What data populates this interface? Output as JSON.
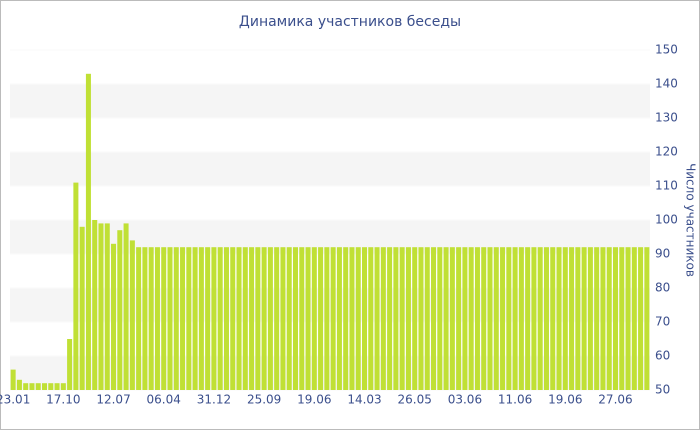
{
  "chart_data": {
    "type": "bar",
    "title": "Динамика участников беседы",
    "y_label": "Число участников",
    "categories": [
      "23.01",
      null,
      null,
      null,
      null,
      null,
      null,
      null,
      "17.10",
      null,
      null,
      null,
      null,
      null,
      null,
      null,
      "12.07",
      null,
      null,
      null,
      null,
      null,
      null,
      null,
      "06.04",
      null,
      null,
      null,
      null,
      null,
      null,
      null,
      "31.12",
      null,
      null,
      null,
      null,
      null,
      null,
      null,
      "25.09",
      null,
      null,
      null,
      null,
      null,
      null,
      null,
      "19.06",
      null,
      null,
      null,
      null,
      null,
      null,
      null,
      "14.03",
      null,
      null,
      null,
      null,
      null,
      null,
      null,
      "26.05",
      null,
      null,
      null,
      null,
      null,
      null,
      null,
      "03.06",
      null,
      null,
      null,
      null,
      null,
      null,
      null,
      "11.06",
      null,
      null,
      null,
      null,
      null,
      null,
      null,
      "19.06",
      null,
      null,
      null,
      null,
      null,
      null,
      null,
      "27.06",
      null,
      null,
      null,
      null,
      null
    ],
    "values": [
      56,
      53,
      52,
      52,
      52,
      52,
      52,
      52,
      52,
      65,
      111,
      98,
      143,
      100,
      99,
      99,
      93,
      97,
      99,
      94,
      92,
      92,
      92,
      92,
      92,
      92,
      92,
      92,
      92,
      92,
      92,
      92,
      92,
      92,
      92,
      92,
      92,
      92,
      92,
      92,
      92,
      92,
      92,
      92,
      92,
      92,
      92,
      92,
      92,
      92,
      92,
      92,
      92,
      92,
      92,
      92,
      92,
      92,
      92,
      92,
      92,
      92,
      92,
      92,
      92,
      92,
      92,
      92,
      92,
      92,
      92,
      92,
      92,
      92,
      92,
      92,
      92,
      92,
      92,
      92,
      92,
      92,
      92,
      92,
      92,
      92,
      92,
      92,
      92,
      92,
      92,
      92,
      92,
      92,
      92,
      92,
      92,
      92,
      92,
      92,
      92,
      92
    ],
    "color": "#c0e035",
    "ylim": [
      50,
      150
    ],
    "yticks": [
      50,
      60,
      70,
      80,
      90,
      100,
      110,
      120,
      130,
      140,
      150
    ],
    "grid": true
  }
}
